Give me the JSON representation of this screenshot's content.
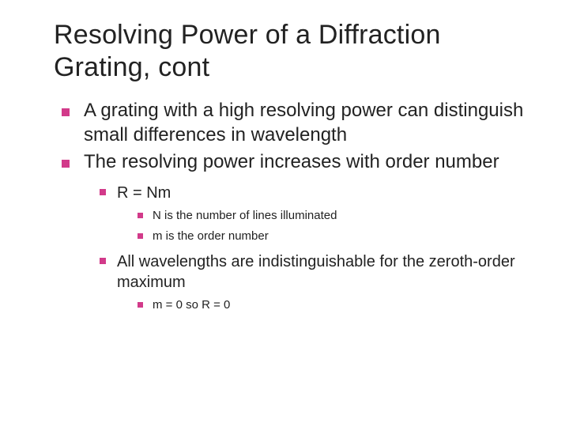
{
  "title_fontsize": 34,
  "lvl1_fontsize": 24,
  "lvl2_fontsize": 20,
  "lvl3_fontsize": 15,
  "bullet_color": "#d23a8a",
  "text_color": "#222222",
  "background_color": "#ffffff",
  "title": "Resolving Power of a Diffraction Grating, cont",
  "b1": "A grating with a high resolving power can distinguish small differences in wavelength",
  "b2": "The resolving power increases with order number",
  "b2_1": "R = Nm",
  "b2_1_1": "N is the number of lines illuminated",
  "b2_1_2": "m is the order number",
  "b2_2": "All wavelengths are indistinguishable for the zeroth-order maximum",
  "b2_2_1": "m = 0 so R = 0"
}
